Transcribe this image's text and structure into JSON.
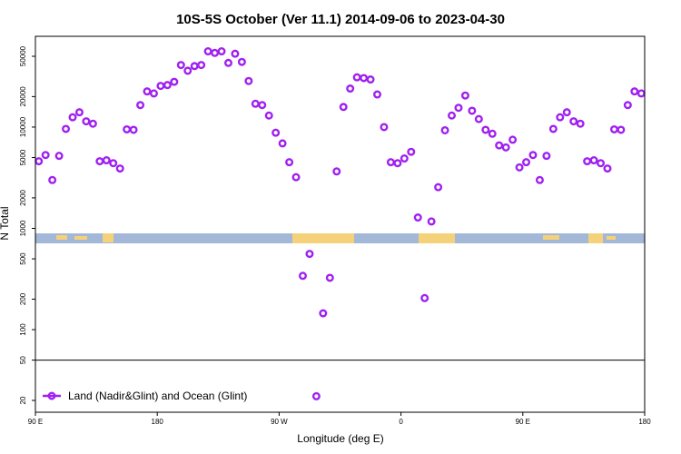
{
  "chart_data": {
    "type": "scatter",
    "title": "10S-5S October (Ver 11.1)   2014-09-06 to 2023-04-30",
    "xlabel": "Longitude (deg E)",
    "ylabel": "N Total",
    "x_ticks": [
      {
        "value": 90,
        "label": "90 E"
      },
      {
        "value": 180,
        "label": "180"
      },
      {
        "value": 270,
        "label": "90 W"
      },
      {
        "value": 360,
        "label": "0"
      },
      {
        "value": 450,
        "label": "90 E"
      },
      {
        "value": 540,
        "label": "180"
      }
    ],
    "xlim": [
      90,
      540
    ],
    "y_scale": "log",
    "y_ticks": [
      20,
      50,
      100,
      200,
      500,
      1000,
      2000,
      5000,
      10000,
      20000,
      50000
    ],
    "reference_line_y": 50,
    "map_strip": {
      "ocean_color": "#a3b8d8",
      "land_color": "#f5d27a"
    },
    "series": [
      {
        "name": "Land (Nadir&Glint) and Ocean (Glint)",
        "color": "#a020f0",
        "marker": "open-circle",
        "points": [
          [
            92.5,
            4600
          ],
          [
            97.5,
            5300
          ],
          [
            102.5,
            3000
          ],
          [
            107.5,
            5200
          ],
          [
            112.5,
            9600
          ],
          [
            117.5,
            12500
          ],
          [
            122.5,
            14000
          ],
          [
            127.5,
            11400
          ],
          [
            132.5,
            10800
          ],
          [
            137.5,
            4600
          ],
          [
            142.5,
            4700
          ],
          [
            147.5,
            4400
          ],
          [
            152.5,
            3900
          ],
          [
            157.5,
            9500
          ],
          [
            162.5,
            9400
          ],
          [
            167.5,
            16500
          ],
          [
            172.5,
            22500
          ],
          [
            177.5,
            21500
          ],
          [
            182.5,
            25500
          ],
          [
            187.5,
            26000
          ],
          [
            192.5,
            28000
          ],
          [
            197.5,
            41000
          ],
          [
            202.5,
            36000
          ],
          [
            207.5,
            40000
          ],
          [
            212.5,
            41000
          ],
          [
            217.5,
            56000
          ],
          [
            222.5,
            54000
          ],
          [
            227.5,
            56000
          ],
          [
            232.5,
            43000
          ],
          [
            237.5,
            53000
          ],
          [
            242.5,
            44000
          ],
          [
            247.5,
            28500
          ],
          [
            252.5,
            17000
          ],
          [
            257.5,
            16500
          ],
          [
            262.5,
            13000
          ],
          [
            267.5,
            8800
          ],
          [
            272.5,
            6900
          ],
          [
            277.5,
            4500
          ],
          [
            282.5,
            3200
          ],
          [
            287.5,
            340
          ],
          [
            292.5,
            560
          ],
          [
            297.5,
            22
          ],
          [
            302.5,
            145
          ],
          [
            307.5,
            325
          ],
          [
            312.5,
            3650
          ],
          [
            317.5,
            15800
          ],
          [
            322.5,
            24000
          ],
          [
            327.5,
            31000
          ],
          [
            332.5,
            30500
          ],
          [
            337.5,
            29500
          ],
          [
            342.5,
            21000
          ],
          [
            347.5,
            10000
          ],
          [
            352.5,
            4500
          ],
          [
            357.5,
            4400
          ],
          [
            362.5,
            4900
          ],
          [
            367.5,
            5700
          ],
          [
            372.5,
            1280
          ],
          [
            377.5,
            205
          ],
          [
            382.5,
            1170
          ],
          [
            387.5,
            2550
          ],
          [
            392.5,
            9300
          ],
          [
            397.5,
            13000
          ],
          [
            402.5,
            15500
          ],
          [
            407.5,
            20500
          ],
          [
            412.5,
            14500
          ],
          [
            417.5,
            12000
          ],
          [
            422.5,
            9400
          ],
          [
            427.5,
            8600
          ],
          [
            432.5,
            6600
          ],
          [
            437.5,
            6300
          ],
          [
            442.5,
            7500
          ],
          [
            447.5,
            4000
          ],
          [
            452.5,
            4500
          ],
          [
            457.5,
            5300
          ],
          [
            462.5,
            3000
          ],
          [
            467.5,
            5200
          ],
          [
            472.5,
            9600
          ],
          [
            477.5,
            12500
          ],
          [
            482.5,
            14000
          ],
          [
            487.5,
            11400
          ],
          [
            492.5,
            10800
          ],
          [
            497.5,
            4600
          ],
          [
            502.5,
            4700
          ],
          [
            507.5,
            4400
          ],
          [
            512.5,
            3900
          ],
          [
            517.5,
            9500
          ],
          [
            522.5,
            9400
          ],
          [
            527.5,
            16500
          ],
          [
            532.5,
            22500
          ],
          [
            537.5,
            21500
          ]
        ]
      }
    ]
  }
}
